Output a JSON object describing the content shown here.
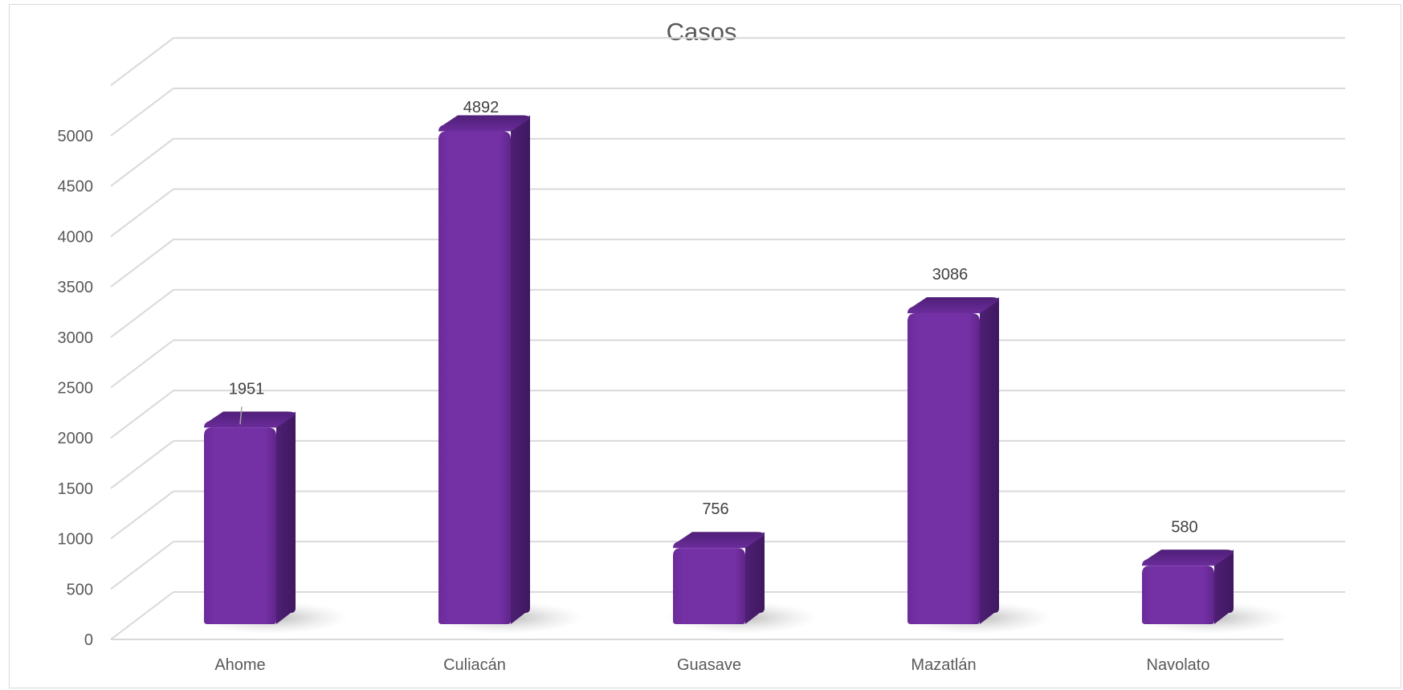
{
  "chart_data": {
    "type": "bar",
    "title": "Casos",
    "categories": [
      "Ahome",
      "Culiacán",
      "Guasave",
      "Mazatlán",
      "Navolato"
    ],
    "values": [
      1951,
      4892,
      756,
      3086,
      580
    ],
    "data_labels": [
      "1951",
      "4892",
      "756",
      "3086",
      "580"
    ],
    "y_ticks": [
      "0",
      "500",
      "1000",
      "1500",
      "2000",
      "2500",
      "3000",
      "3500",
      "4000",
      "4500",
      "5000"
    ],
    "ylim": [
      0,
      5000
    ],
    "xlabel": "",
    "ylabel": "",
    "grid": true,
    "legend": "none",
    "style": "3d-column",
    "colors": {
      "bar_front": "#7030a0",
      "bar_side": "#4a1d6e",
      "bar_top": "#5e2791",
      "grid": "#d9d9d9",
      "text": "#595959"
    }
  }
}
